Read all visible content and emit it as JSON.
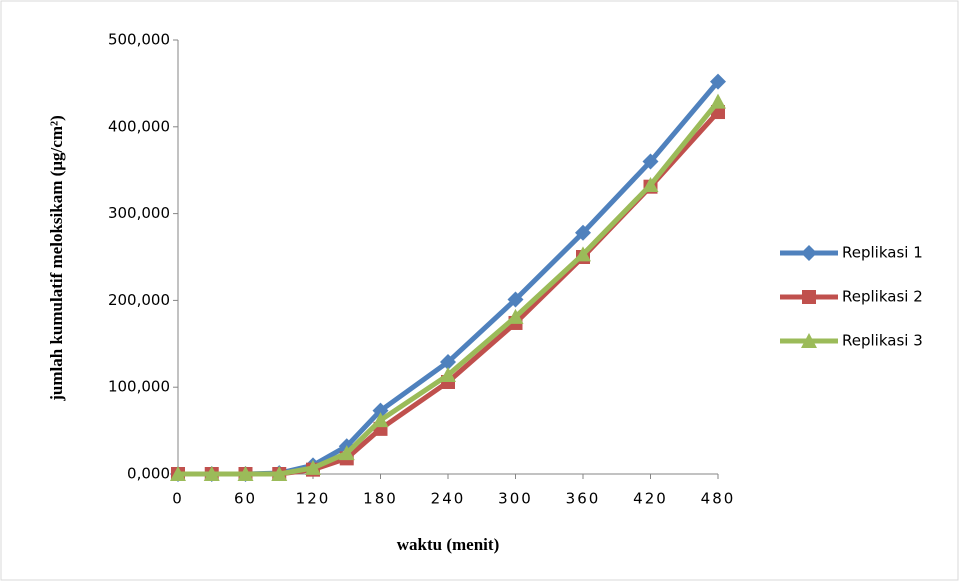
{
  "chart_data": {
    "type": "line",
    "y_label": "jumlah kumulatif meloksikam (µg/cm²)",
    "x_label": "waktu (menit)",
    "x": [
      0,
      30,
      60,
      90,
      120,
      150,
      180,
      240,
      300,
      360,
      420,
      480
    ],
    "xlim": [
      0,
      480
    ],
    "xticks": [
      0,
      60,
      120,
      180,
      240,
      300,
      360,
      420,
      480
    ],
    "ylim": [
      0,
      500
    ],
    "yticks": [
      {
        "value": 0,
        "label": "0,000"
      },
      {
        "value": 100,
        "label": "100,000"
      },
      {
        "value": 200,
        "label": "200,000"
      },
      {
        "value": 300,
        "label": "300,000"
      },
      {
        "value": 400,
        "label": "400,000"
      },
      {
        "value": 500,
        "label": "500,000"
      }
    ],
    "legend": "right",
    "series": [
      {
        "name": "Replikasi 1",
        "color": "#4f81bd",
        "marker": "diamond",
        "values": [
          0,
          0,
          0,
          1,
          10,
          32,
          73,
          129,
          201,
          278,
          360,
          452
        ]
      },
      {
        "name": "Replikasi 2",
        "color": "#c0504d",
        "marker": "square",
        "values": [
          0,
          0,
          0,
          0,
          5,
          18,
          52,
          106,
          174,
          250,
          331,
          417
        ]
      },
      {
        "name": "Replikasi 3",
        "color": "#9bbb59",
        "marker": "triangle",
        "values": [
          0,
          0,
          0,
          0,
          7,
          24,
          62,
          114,
          181,
          253,
          333,
          429
        ]
      }
    ]
  }
}
